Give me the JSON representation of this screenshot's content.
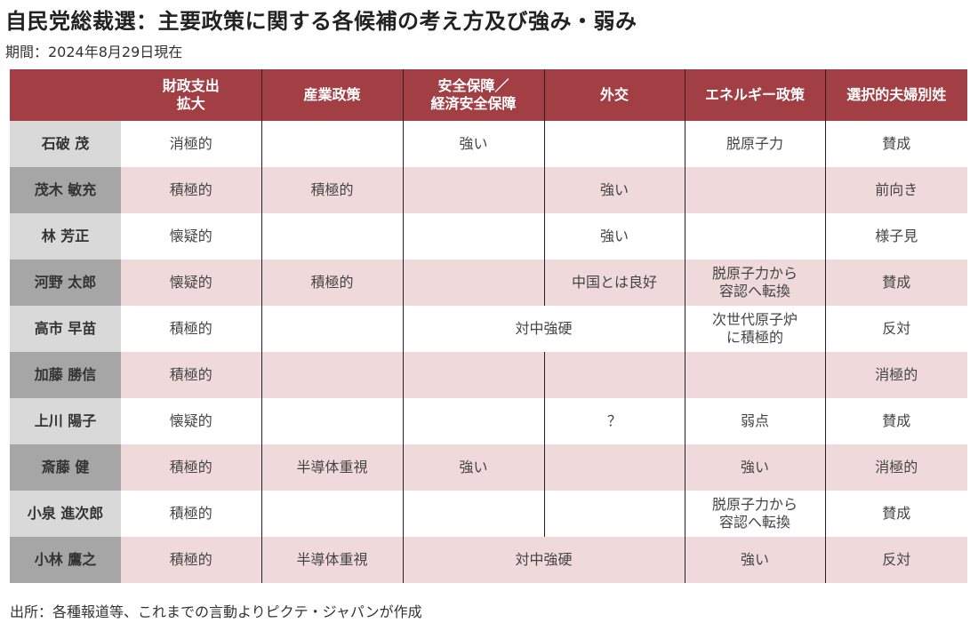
{
  "title": "自民党総裁選：主要政策に関する各候補の考え方及び強み・弱み",
  "subtitle": "期間：2024年8月29日現在",
  "colors": {
    "header": "#a23f45",
    "row_alt": "#f0d9da",
    "name_light": "#d9d9d9",
    "name_dark": "#a6a6a6"
  },
  "headers": [
    "",
    "財政支出\n拡大",
    "産業政策",
    "安全保障／\n経済安全保障",
    "外交",
    "エネルギー政策",
    "選択的夫婦別姓"
  ],
  "rows": [
    {
      "name": "石破 茂",
      "cells": [
        {
          "text": "消極的"
        },
        {
          "text": ""
        },
        {
          "text": "強い"
        },
        {
          "text": ""
        },
        {
          "text": "脱原子力"
        },
        {
          "text": "賛成"
        }
      ]
    },
    {
      "name": "茂木 敏充",
      "cells": [
        {
          "text": "積極的"
        },
        {
          "text": "積極的"
        },
        {
          "text": ""
        },
        {
          "text": "強い"
        },
        {
          "text": ""
        },
        {
          "text": "前向き"
        }
      ]
    },
    {
      "name": "林 芳正",
      "cells": [
        {
          "text": "懐疑的"
        },
        {
          "text": ""
        },
        {
          "text": ""
        },
        {
          "text": "強い"
        },
        {
          "text": ""
        },
        {
          "text": "様子見"
        }
      ]
    },
    {
      "name": "河野 太郎",
      "cells": [
        {
          "text": "懐疑的"
        },
        {
          "text": "積極的"
        },
        {
          "text": ""
        },
        {
          "text": "中国とは良好"
        },
        {
          "text": "脱原子力から\n容認へ転換"
        },
        {
          "text": "賛成"
        }
      ]
    },
    {
      "name": "高市 早苗",
      "cells": [
        {
          "text": "積極的"
        },
        {
          "text": ""
        },
        {
          "text": "対中強硬",
          "span": 2
        },
        {
          "text": "次世代原子炉\nに積極的"
        },
        {
          "text": "反対"
        }
      ]
    },
    {
      "name": "加藤 勝信",
      "cells": [
        {
          "text": "積極的"
        },
        {
          "text": ""
        },
        {
          "text": ""
        },
        {
          "text": ""
        },
        {
          "text": ""
        },
        {
          "text": "消極的"
        }
      ]
    },
    {
      "name": "上川 陽子",
      "cells": [
        {
          "text": "懐疑的"
        },
        {
          "text": ""
        },
        {
          "text": ""
        },
        {
          "text": "？"
        },
        {
          "text": "弱点"
        },
        {
          "text": "賛成"
        }
      ]
    },
    {
      "name": "斎藤 健",
      "cells": [
        {
          "text": "積極的"
        },
        {
          "text": "半導体重視"
        },
        {
          "text": "強い"
        },
        {
          "text": ""
        },
        {
          "text": "強い"
        },
        {
          "text": "消極的"
        }
      ]
    },
    {
      "name": "小泉 進次郎",
      "cells": [
        {
          "text": "積極的"
        },
        {
          "text": ""
        },
        {
          "text": ""
        },
        {
          "text": ""
        },
        {
          "text": "脱原子力から\n容認へ転換"
        },
        {
          "text": "賛成"
        }
      ]
    },
    {
      "name": "小林 鷹之",
      "cells": [
        {
          "text": "積極的"
        },
        {
          "text": "半導体重視"
        },
        {
          "text": "対中強硬",
          "span": 2
        },
        {
          "text": "強い"
        },
        {
          "text": "反対"
        }
      ]
    }
  ],
  "footer": "出所：各種報道等、これまでの言動よりピクテ・ジャパンが作成"
}
